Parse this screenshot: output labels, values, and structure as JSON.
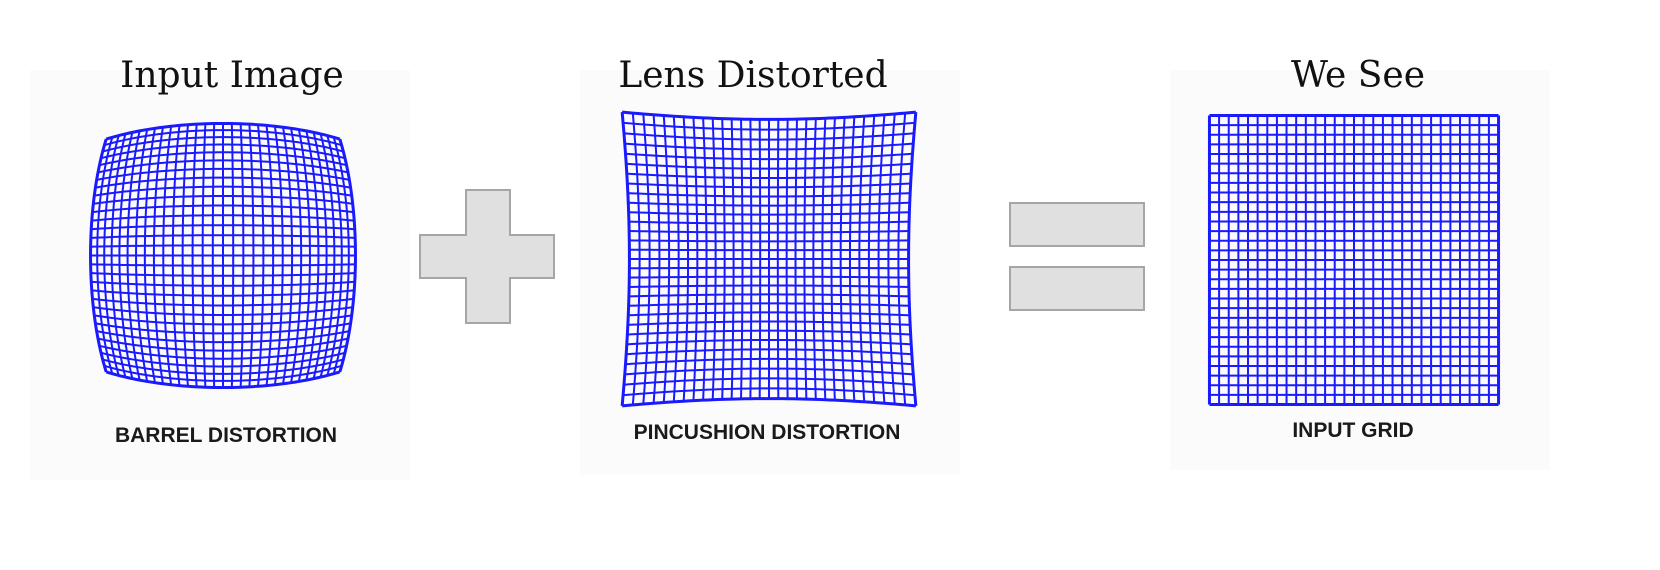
{
  "panels": [
    {
      "title": "Input Image",
      "caption": "BARREL DISTORTION",
      "distortion": "barrel"
    },
    {
      "title": "Lens Distorted",
      "caption": "PINCUSHION DISTORTION",
      "distortion": "pincushion"
    },
    {
      "title": "We See",
      "caption": "INPUT GRID",
      "distortion": "none"
    }
  ],
  "operators": {
    "plus": "plus-sign",
    "equals": "equals-sign"
  },
  "colors": {
    "grid": "#1a1aff",
    "operator_fill": "#e0e0e0",
    "operator_stroke": "#a6a6a6"
  },
  "grid_cells": 30
}
